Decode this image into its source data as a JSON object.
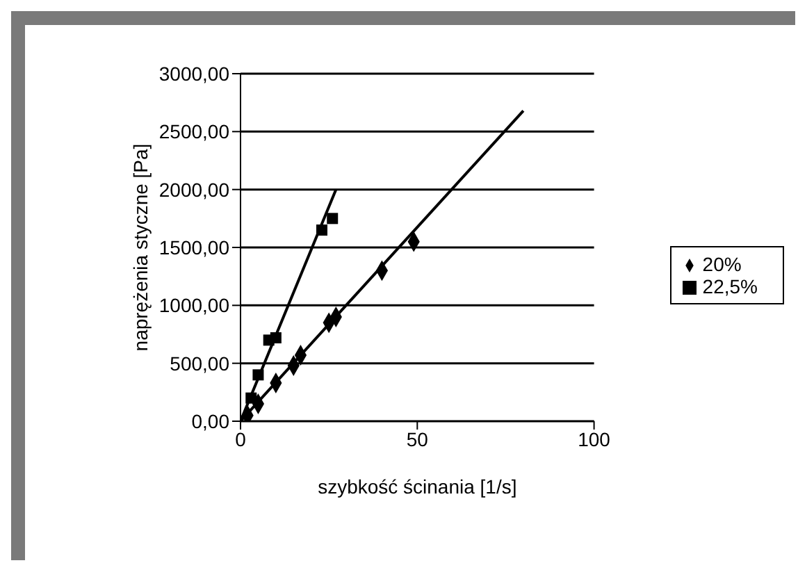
{
  "chart_data": {
    "type": "scatter",
    "xlabel": "szybkość ścinania [1/s]",
    "ylabel": "naprężenia styczne [Pa]",
    "xlim": [
      0,
      100
    ],
    "xticks": [
      0,
      50,
      100
    ],
    "ylim": [
      0,
      3000
    ],
    "yticks": [
      {
        "value": 0,
        "label": "0,00"
      },
      {
        "value": 500,
        "label": "500,00"
      },
      {
        "value": 1000,
        "label": "1000,00"
      },
      {
        "value": 1500,
        "label": "1500,00"
      },
      {
        "value": 2000,
        "label": "2000,00"
      },
      {
        "value": 2500,
        "label": "2500,00"
      },
      {
        "value": 3000,
        "label": "3000,00"
      }
    ],
    "grid": "y",
    "legend": "right",
    "series": [
      {
        "name": "20%",
        "color": "#000000",
        "marker": "diamond",
        "x": [
          2,
          5,
          10,
          15,
          17,
          25,
          27,
          40,
          49
        ],
        "values": [
          50,
          150,
          330,
          480,
          570,
          850,
          900,
          1300,
          1550
        ]
      },
      {
        "name": "22,5%",
        "color": "#000000",
        "marker": "square",
        "x": [
          3,
          5,
          8,
          10,
          23,
          26
        ],
        "values": [
          200,
          400,
          700,
          720,
          1650,
          1750
        ]
      },
      {
        "type": "line",
        "color": "#000000",
        "marker": "none",
        "x": [
          0,
          80
        ],
        "values": [
          0,
          2680
        ]
      },
      {
        "type": "line",
        "color": "#000000",
        "marker": "none",
        "x": [
          0,
          27
        ],
        "values": [
          0,
          2000
        ]
      }
    ]
  }
}
